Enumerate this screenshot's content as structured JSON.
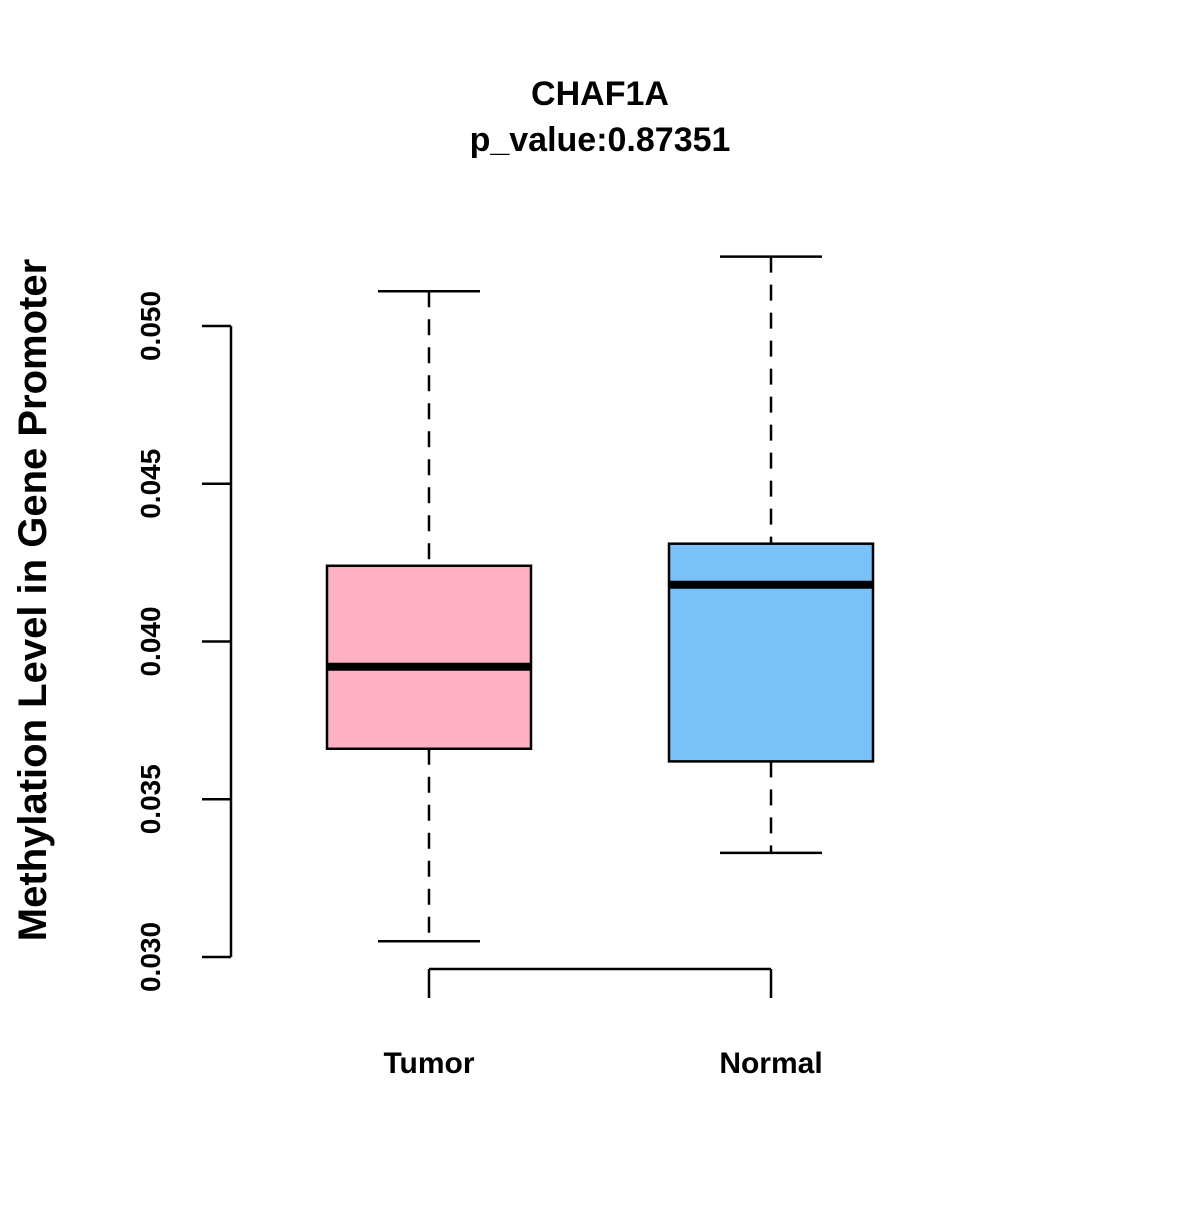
{
  "chart_data": {
    "type": "box",
    "title": "CHAF1A",
    "subtitle": "p_value:0.87351",
    "xlabel": "",
    "ylabel": "Methylation Level in Gene Promoter",
    "ylim": [
      0.03,
      0.05
    ],
    "yticks": [
      0.03,
      0.035,
      0.04,
      0.045,
      0.05
    ],
    "ytick_labels": [
      "0.030",
      "0.035",
      "0.040",
      "0.045",
      "0.050"
    ],
    "categories": [
      "Tumor",
      "Normal"
    ],
    "boxes": [
      {
        "name": "Tumor",
        "whisker_low": 0.0305,
        "q1": 0.0366,
        "median": 0.0392,
        "q3": 0.0424,
        "whisker_high": 0.0511,
        "color": "#FDB1C2"
      },
      {
        "name": "Normal",
        "whisker_low": 0.0333,
        "q1": 0.0362,
        "median": 0.0418,
        "q3": 0.0431,
        "whisker_high": 0.0522,
        "color": "#79C1F9"
      }
    ],
    "grid": false,
    "legend": "none"
  }
}
